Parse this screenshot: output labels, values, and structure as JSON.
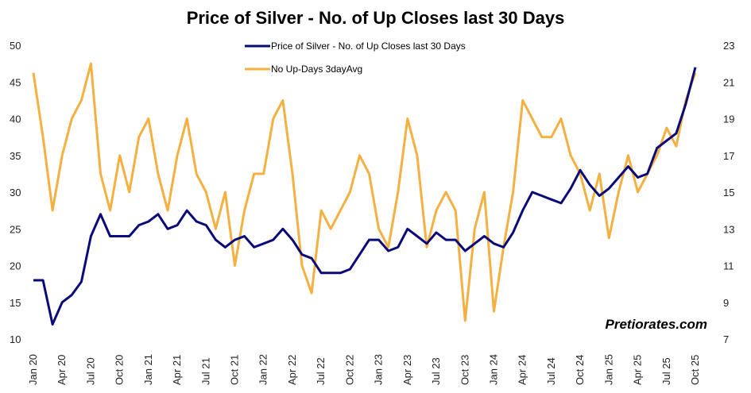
{
  "chart_data": {
    "type": "line",
    "title": "Price of Silver - No. of Up Closes last 30 Days",
    "x_labels": [
      "Jan 20",
      "Apr 20",
      "Jul 20",
      "Oct 20",
      "Jan 21",
      "Apr 21",
      "Jul 21",
      "Oct 21",
      "Jan 22",
      "Apr 22",
      "Jul 22",
      "Oct 22",
      "Jan 23",
      "Apr 23",
      "Jul 23",
      "Oct 23",
      "Jan 24",
      "Apr 24",
      "Jul 24",
      "Oct 24",
      "Jan 25",
      "Apr 25",
      "Jul 25",
      "Oct 25"
    ],
    "x_unit": "months since Jan 2020",
    "left_axis": {
      "range": [
        10,
        50
      ],
      "ticks": [
        10,
        15,
        20,
        25,
        30,
        35,
        40,
        45,
        50
      ]
    },
    "right_axis": {
      "range": [
        7,
        23
      ],
      "ticks": [
        7,
        9,
        11,
        13,
        15,
        17,
        19,
        21,
        23
      ]
    },
    "legend_position": "top-center",
    "series": [
      {
        "name": "Price of Silver - No. of Up Closes last 30 Days",
        "axis": "left",
        "color": "#0a0a78",
        "values": [
          18,
          18,
          12,
          15,
          16,
          17.8,
          24,
          27,
          24,
          24,
          24,
          25.5,
          26,
          27,
          25,
          25.5,
          27.5,
          26,
          25.5,
          23.5,
          22.5,
          23.5,
          24,
          22.5,
          23,
          23.5,
          25,
          23.5,
          21.5,
          21,
          19,
          19,
          19,
          19.5,
          21.5,
          23.5,
          23.5,
          22,
          22.5,
          25,
          24,
          23,
          24.5,
          23.5,
          23.5,
          22,
          23,
          24,
          23,
          22.5,
          24.5,
          27.5,
          30,
          29.5,
          29,
          28.5,
          30.5,
          33,
          31,
          29.5,
          30.5,
          32,
          33.5,
          32,
          32.5,
          36,
          37,
          38,
          42,
          47
        ]
      },
      {
        "name": "No Up-Days 3dayAvg",
        "axis": "right",
        "color": "#f5b042",
        "values": [
          21.5,
          18,
          14,
          17,
          19,
          20,
          22,
          16,
          14,
          17,
          15,
          18,
          19,
          16,
          14,
          17,
          19,
          16,
          15,
          13,
          15,
          11,
          14,
          16,
          16,
          19,
          20,
          16,
          11,
          9.5,
          14,
          13,
          14,
          15,
          17,
          16,
          13,
          12,
          15,
          19,
          17,
          12,
          14,
          15,
          14,
          8,
          13,
          15,
          8.5,
          12,
          15,
          20,
          19,
          18,
          18,
          19,
          17,
          16,
          14,
          16,
          12.5,
          15,
          17,
          15,
          16,
          17,
          18.5,
          17.5,
          20,
          21.5
        ]
      }
    ],
    "watermark": "Pretiorates.com"
  }
}
